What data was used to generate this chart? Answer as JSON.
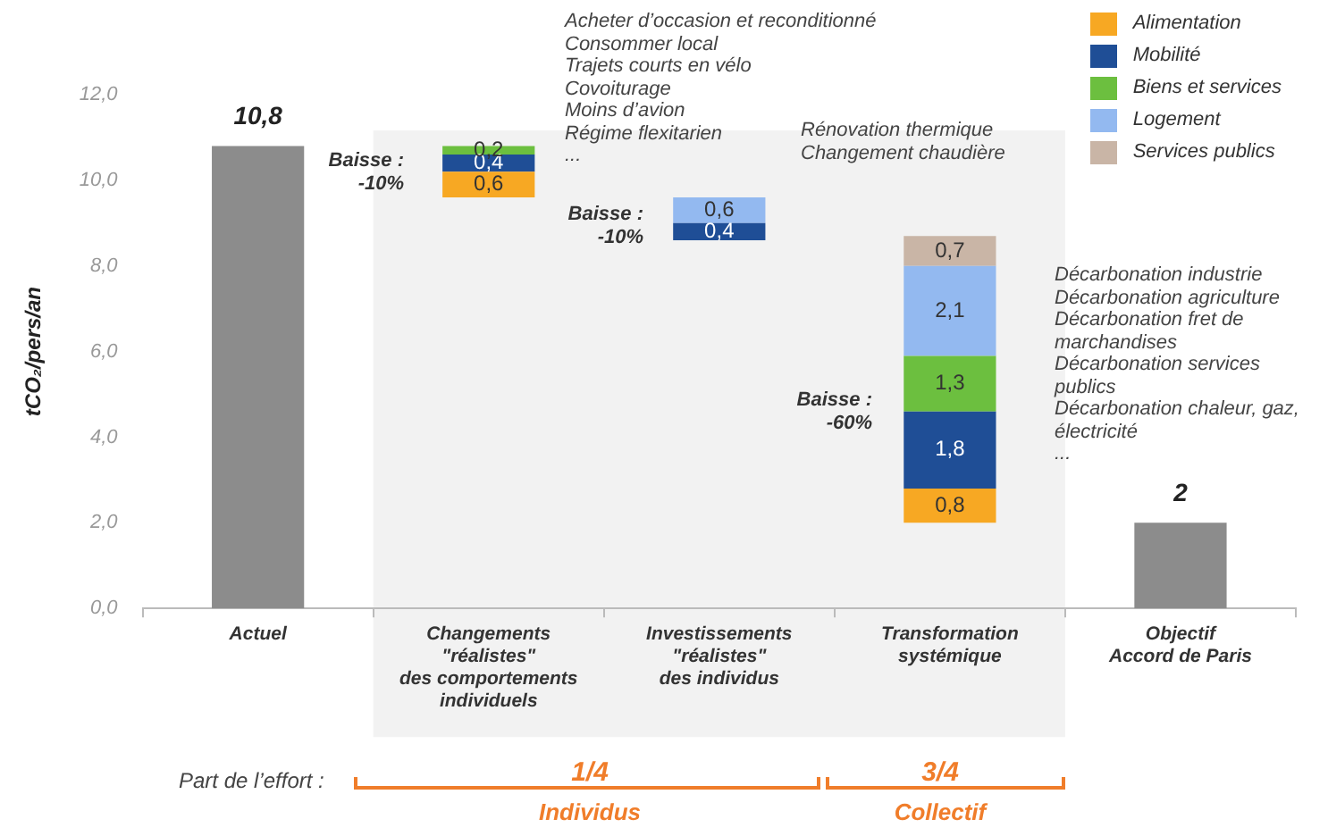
{
  "chart_data": {
    "type": "bar",
    "ylabel": "tCO₂/pers/an",
    "categories": [
      "Actuel",
      "Changements\n\"réalistes\"\ndes comportements\nindividuels",
      "Investissements\n\"réalistes\"\ndes individus",
      "Transformation\nsystémique",
      "Objectif\nAccord de Paris"
    ],
    "series": [
      {
        "color": "#8c8c8c",
        "values": [
          10.8,
          null,
          null,
          null,
          2
        ],
        "value_labels": [
          "10,8",
          null,
          null,
          null,
          "2"
        ]
      },
      {
        "name": "Alimentation",
        "color": "#f7a823",
        "base": [
          null,
          9.6,
          null,
          2.0,
          null
        ],
        "values": [
          null,
          0.6,
          null,
          0.8,
          null
        ],
        "value_labels": [
          null,
          "0,6",
          null,
          "0,8",
          null
        ]
      },
      {
        "name": "Mobilité",
        "color": "#1f4e96",
        "base": [
          null,
          10.2,
          8.6,
          2.8,
          null
        ],
        "values": [
          null,
          0.4,
          0.4,
          1.8,
          null
        ],
        "value_labels": [
          null,
          "0,4",
          "0,4",
          "1,8",
          null
        ]
      },
      {
        "name": "Biens et services",
        "color": "#6cbf3f",
        "base": [
          null,
          10.6,
          null,
          4.6,
          null
        ],
        "values": [
          null,
          0.2,
          null,
          1.3,
          null
        ],
        "value_labels": [
          null,
          "0,2",
          null,
          "1,3",
          null
        ]
      },
      {
        "name": "Logement",
        "color": "#93b9f0",
        "base": [
          null,
          null,
          9.0,
          5.9,
          null
        ],
        "values": [
          null,
          null,
          0.6,
          2.1,
          null
        ],
        "value_labels": [
          null,
          null,
          "0,6",
          "2,1",
          null
        ]
      },
      {
        "name": "Services publics",
        "color": "#c9b5a6",
        "base": [
          null,
          null,
          null,
          8.0,
          null
        ],
        "values": [
          null,
          null,
          null,
          0.7,
          null
        ],
        "value_labels": [
          null,
          null,
          null,
          "0,7",
          null
        ]
      }
    ],
    "ylim": [
      0,
      12
    ],
    "yticks": [
      {
        "value": 0,
        "label": "0,0"
      },
      {
        "value": 2,
        "label": "2,0"
      },
      {
        "value": 4,
        "label": "4,0"
      },
      {
        "value": 6,
        "label": "6,0"
      },
      {
        "value": 8,
        "label": "8,0"
      },
      {
        "value": 10,
        "label": "10,0"
      },
      {
        "value": 12,
        "label": "12,0"
      }
    ],
    "grid": false,
    "legend": "top right",
    "bands": [
      {
        "axis": "x",
        "from": "Changements\n\"réalistes\"\ndes comportements\nindividuels",
        "to": "Transformation\nsystémique",
        "color": "#f2f2f2"
      }
    ],
    "annotations": [
      "Acheter d’occasion et reconditionné\nConsommer local\nTrajets courts en vélo\nCovoiturage\nMoins d’avion\nRégime flexitarien\n...",
      "Baisse :\n-10%",
      "Rénovation thermique\nChangement chaudière",
      "Baisse :\n-10%",
      "Baisse :\n-60%",
      "Décarbonation industrie\nDécarbonation agriculture\nDécarbonation fret de\nmarchandises\nDécarbonation services\npublics\nDécarbonation chaleur, gaz,\nélectricité\n...",
      "Part de l’effort :",
      "1/4",
      "Individus",
      "3/4",
      "Collectif"
    ]
  }
}
